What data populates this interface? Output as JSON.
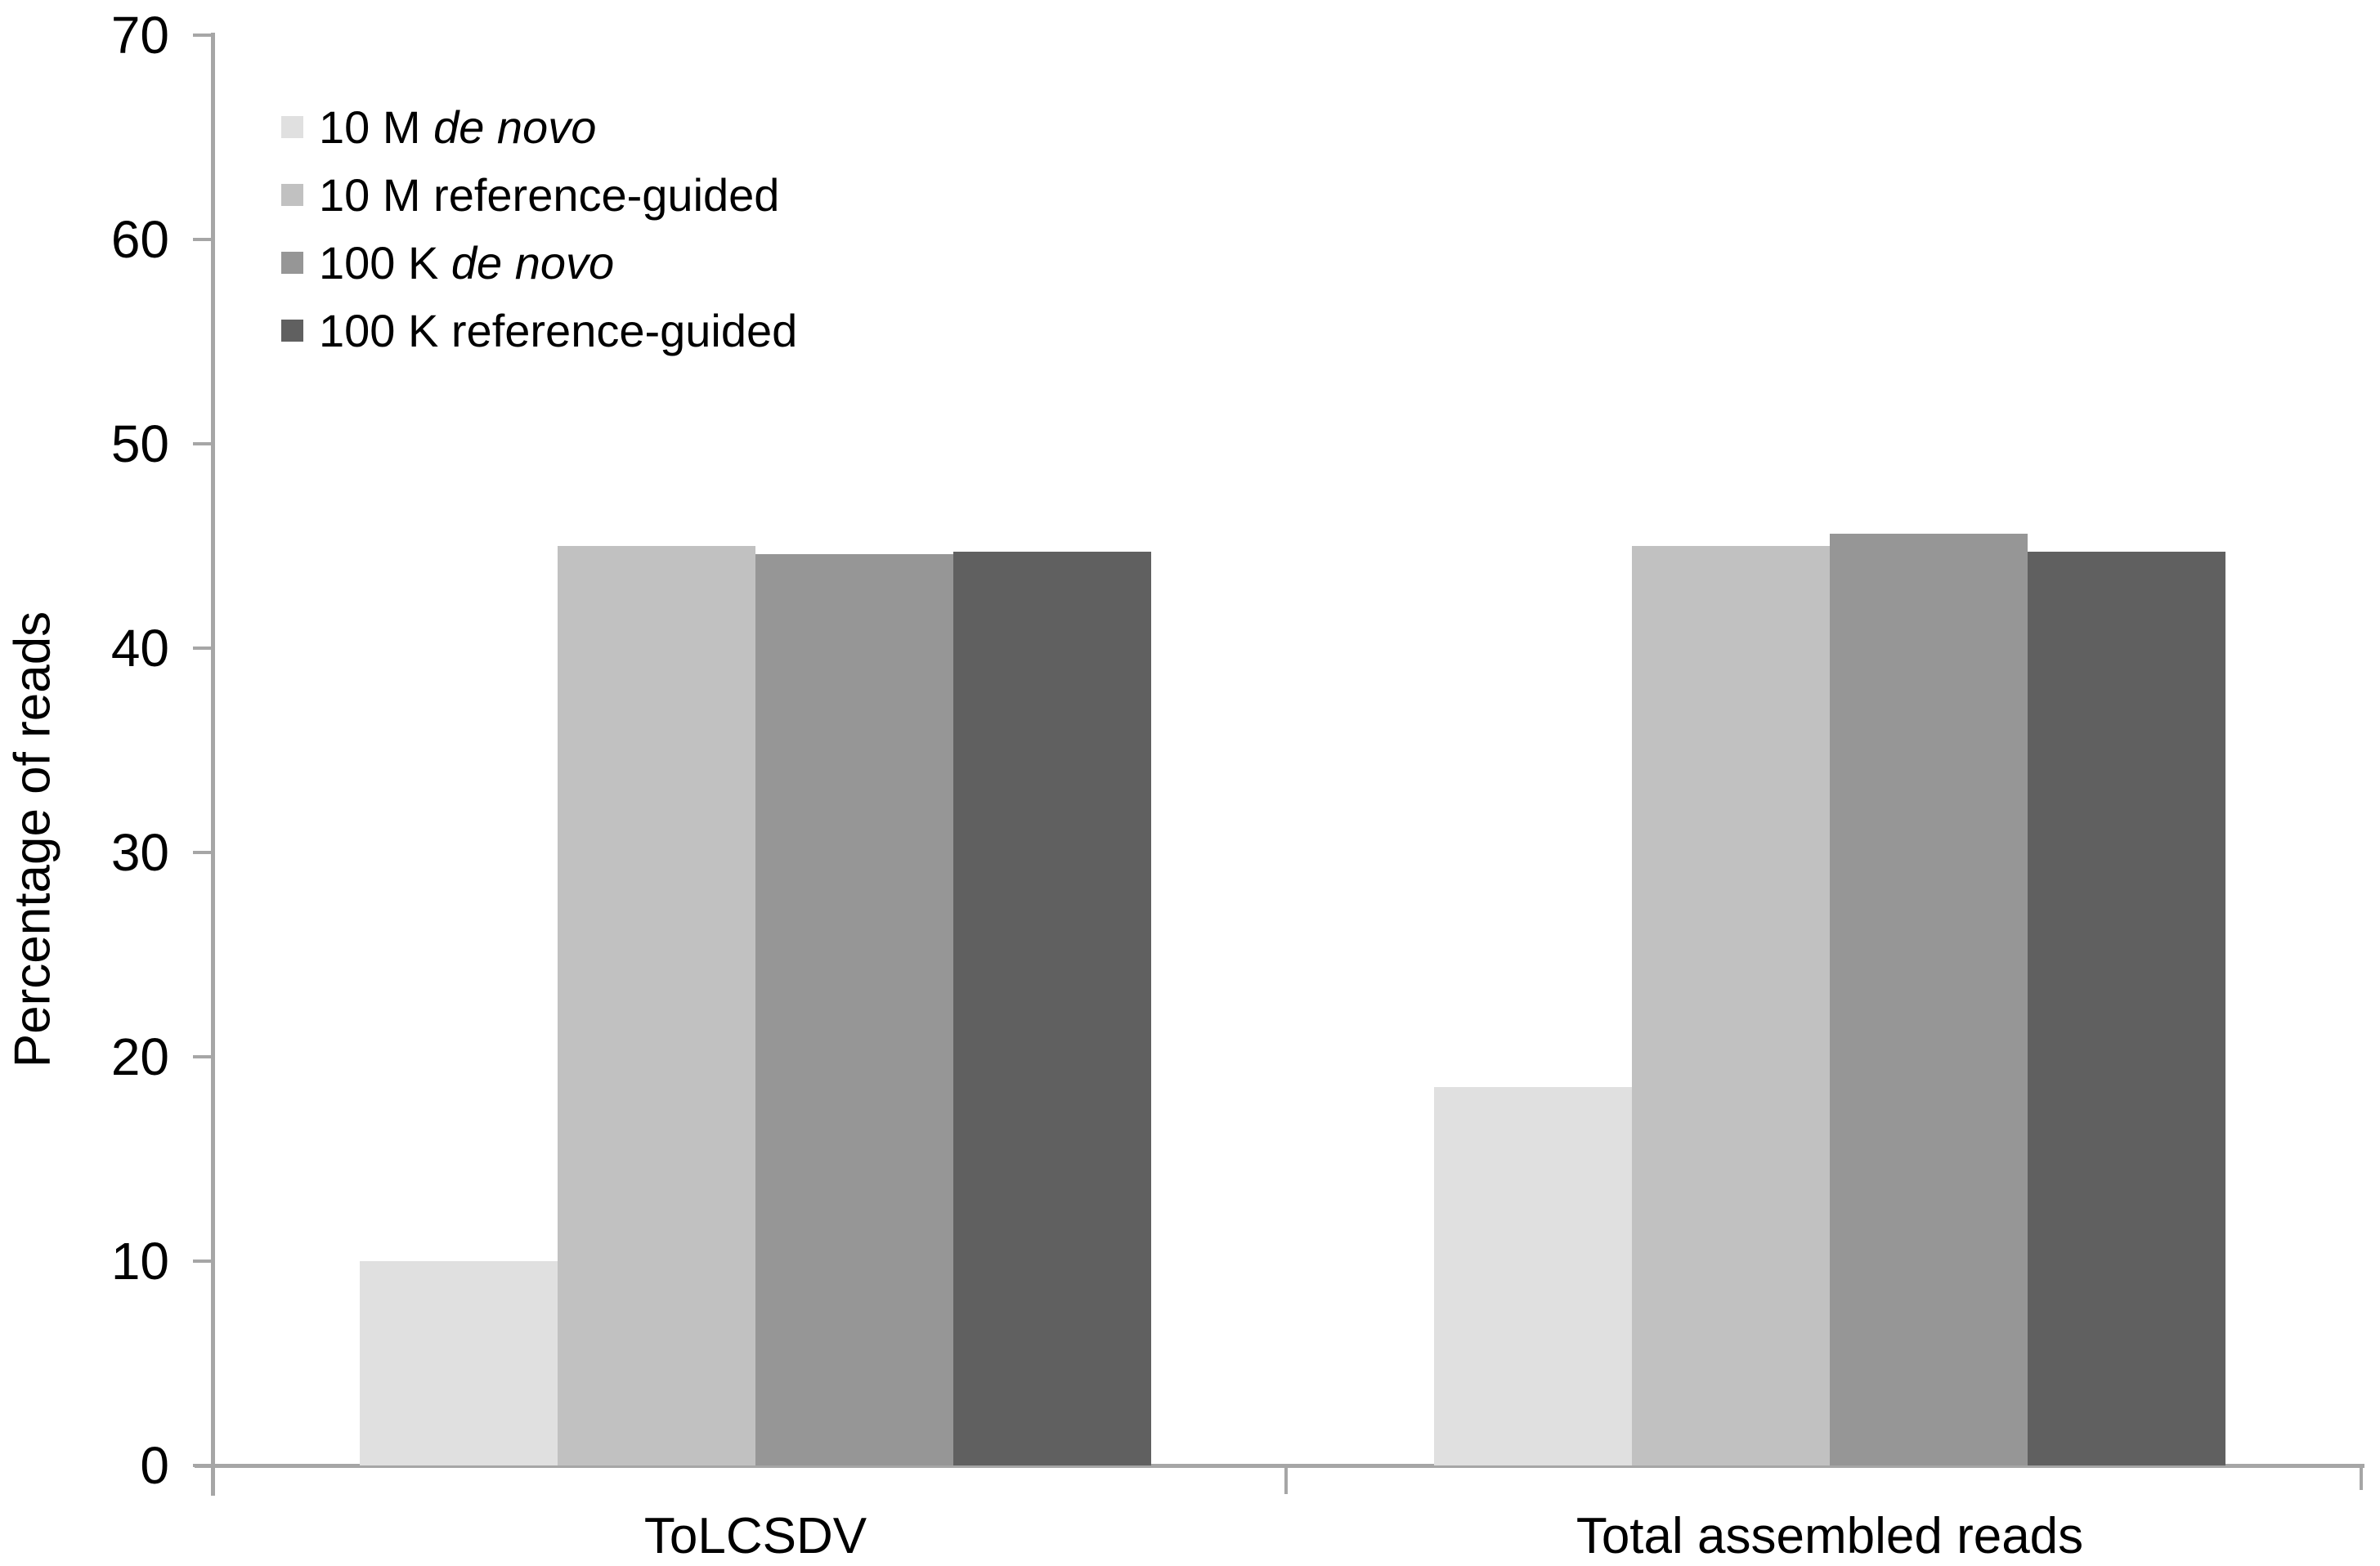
{
  "figure": {
    "background_color": "#ffffff",
    "axis_color": "#a6a6a6",
    "text_color": "#000000"
  },
  "chart_data": {
    "type": "bar",
    "title": "",
    "xlabel": "",
    "ylabel": "Percentage of reads",
    "ylim": [
      0,
      70
    ],
    "yticks": [
      0,
      10,
      20,
      30,
      40,
      50,
      60,
      70
    ],
    "grid": false,
    "legend_position": "top-left",
    "categories": [
      "ToLCSDV",
      "Total assembled reads"
    ],
    "series": [
      {
        "name": "10 M de novo",
        "color": "#e0e0e0",
        "values": [
          10,
          18.5
        ],
        "label_segments": [
          {
            "t": "10 M ",
            "i": false
          },
          {
            "t": "de novo",
            "i": true
          }
        ]
      },
      {
        "name": "10 M reference-guided",
        "color": "#c1c1c1",
        "values": [
          45,
          45
        ],
        "label_segments": [
          {
            "t": "10 M reference-guided",
            "i": false
          }
        ]
      },
      {
        "name": "100 K de novo",
        "color": "#969696",
        "values": [
          44.6,
          45.6
        ],
        "label_segments": [
          {
            "t": "100 K ",
            "i": false
          },
          {
            "t": "de novo",
            "i": true
          }
        ]
      },
      {
        "name": "100 K reference-guided",
        "color": "#606060",
        "values": [
          44.7,
          44.7
        ],
        "label_segments": [
          {
            "t": "100 K reference-guided",
            "i": false
          }
        ]
      }
    ]
  }
}
